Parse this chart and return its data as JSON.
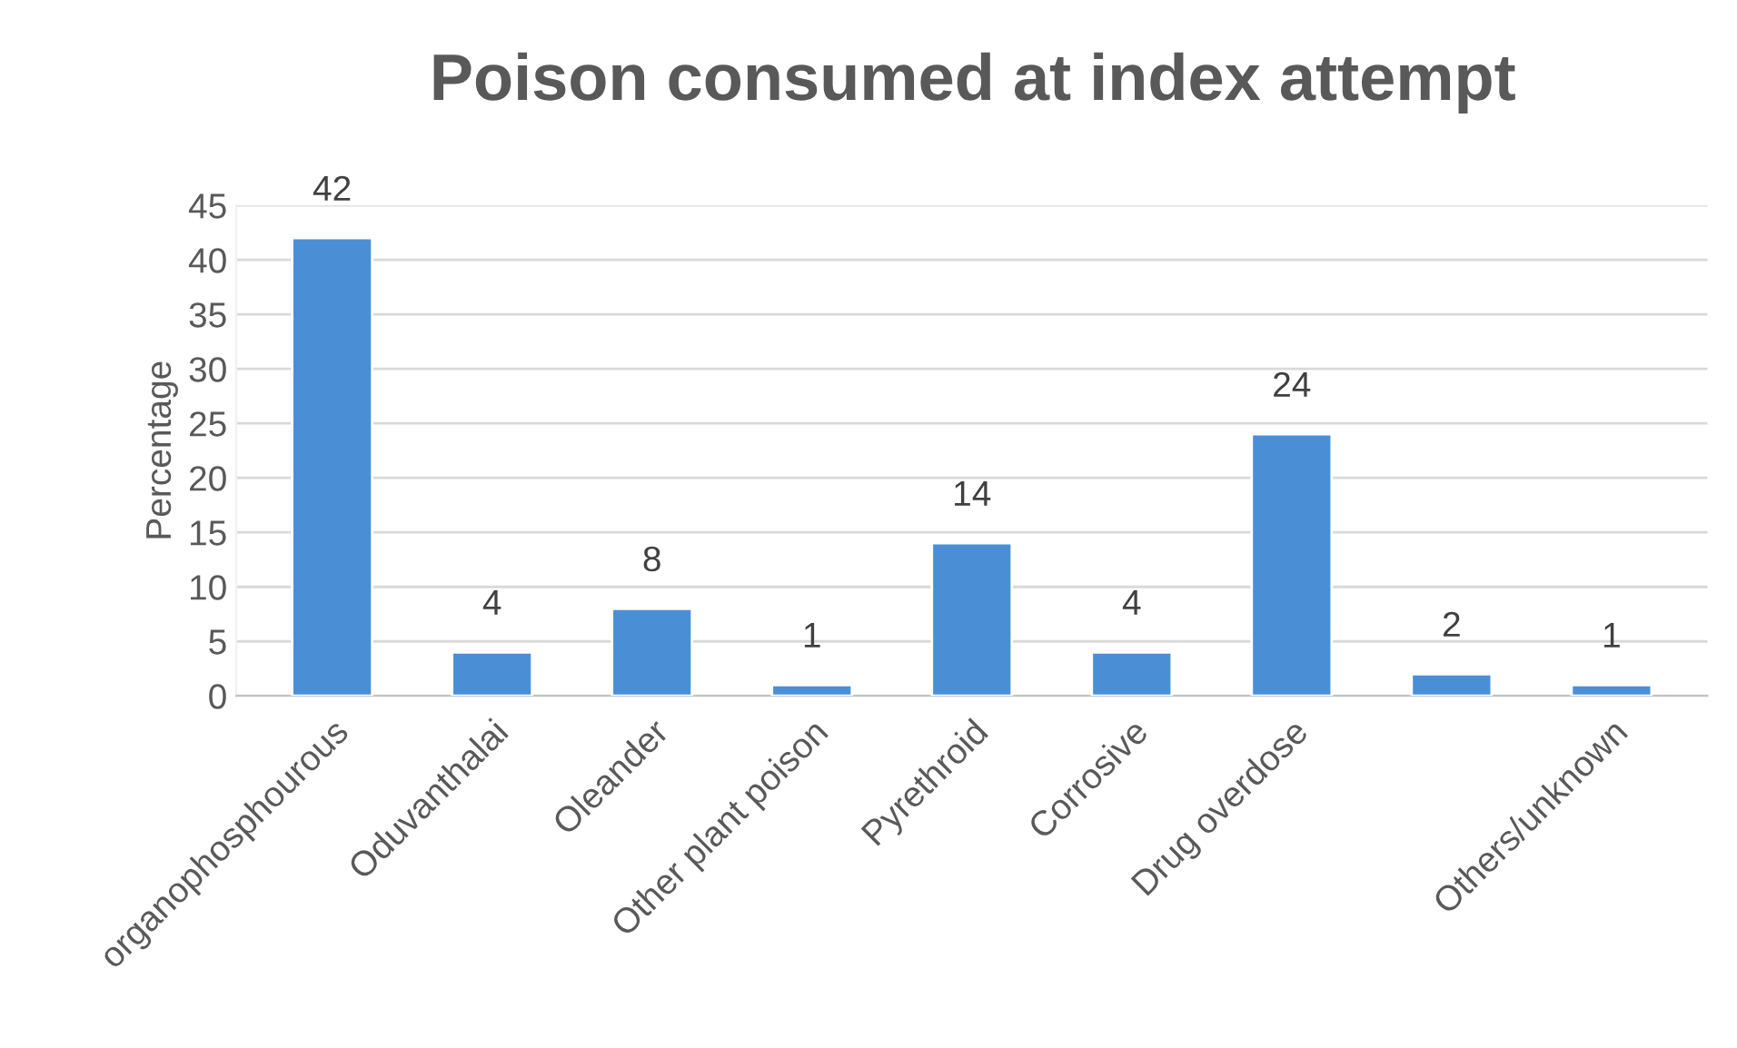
{
  "chart_data": {
    "type": "bar",
    "title": "Poison consumed at index attempt",
    "ylabel": "Percentage",
    "categories": [
      "organophosphourous",
      "Oduvanthalai",
      "Oleander",
      "Other plant poison",
      "Pyrethroid",
      "Corrosive",
      "Drug overdose",
      null,
      "Others/unknown"
    ],
    "values": [
      42,
      4,
      8,
      1,
      14,
      4,
      24,
      2,
      1
    ],
    "color": "#4a8fd6",
    "ylim": [
      0,
      45
    ],
    "yticks": [
      0,
      5,
      10,
      15,
      20,
      25,
      30,
      35,
      40,
      45
    ],
    "grid": "y",
    "data_labels": true,
    "legend": false
  }
}
